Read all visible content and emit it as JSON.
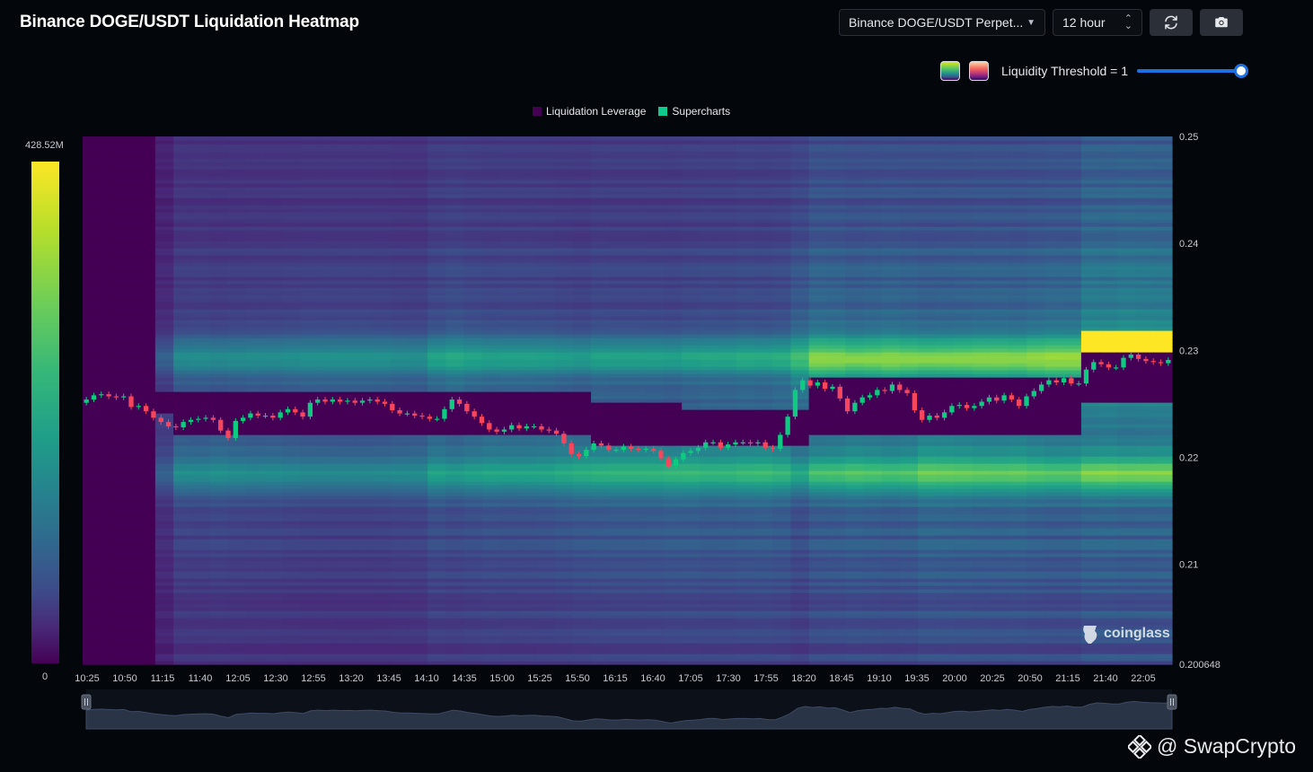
{
  "header": {
    "title": "Binance DOGE/USDT Liquidation Heatmap",
    "symbol_select": "Binance DOGE/USDT Perpet...",
    "interval_select": "12 hour",
    "threshold_label": "Liquidity Threshold = 1"
  },
  "colorbar": {
    "max_label": "428.52M",
    "min_label": "0"
  },
  "watermark": "coinglass",
  "brand": "@ SwapCrypto",
  "colors": {
    "background": "#03060a",
    "up_candle": "#0ecb81",
    "down_candle": "#f6465d",
    "slider_accent": "#1f6fe0",
    "legend_liquidation_leverage": "#440154",
    "legend_supercharts": "#10c98c"
  },
  "icons": {
    "refresh": "refresh-icon",
    "camera": "camera-icon",
    "dropdown": "chevron-down-icon"
  },
  "slider": {
    "value": 1
  },
  "chart_data": {
    "type": "heatmap",
    "title": "",
    "legend": [
      {
        "name": "Liquidation Leverage",
        "color": "#440154"
      },
      {
        "name": "Supercharts",
        "color": "#10c98c"
      }
    ],
    "x_ticks": [
      "10:25",
      "10:50",
      "11:15",
      "11:40",
      "12:05",
      "12:30",
      "12:55",
      "13:20",
      "13:45",
      "14:10",
      "14:35",
      "15:00",
      "15:25",
      "15:50",
      "16:15",
      "16:40",
      "17:05",
      "17:30",
      "17:55",
      "18:20",
      "18:45",
      "19:10",
      "19:35",
      "20:00",
      "20:25",
      "20:50",
      "21:15",
      "21:40",
      "22:05"
    ],
    "y_ticks": [
      "0.25",
      "0.24",
      "0.23",
      "0.22",
      "0.21",
      "0.200648"
    ],
    "y_range": [
      0.200648,
      0.25
    ],
    "colorbar_range": [
      0,
      428520000
    ],
    "close_prices": [
      0.2254,
      0.2258,
      0.2259,
      0.2257,
      0.2256,
      0.2257,
      0.2247,
      0.2248,
      0.2243,
      0.2237,
      0.2233,
      0.2229,
      0.2228,
      0.2233,
      0.2235,
      0.2236,
      0.2237,
      0.2235,
      0.2225,
      0.2218,
      0.2234,
      0.2237,
      0.2241,
      0.2239,
      0.2239,
      0.2237,
      0.2242,
      0.2245,
      0.2242,
      0.2238,
      0.2251,
      0.2254,
      0.2252,
      0.2254,
      0.2252,
      0.2253,
      0.2251,
      0.2253,
      0.2254,
      0.2252,
      0.225,
      0.2244,
      0.2241,
      0.2241,
      0.2239,
      0.2238,
      0.2236,
      0.2236,
      0.2245,
      0.2254,
      0.225,
      0.2243,
      0.2238,
      0.2232,
      0.2226,
      0.2224,
      0.2226,
      0.223,
      0.2227,
      0.2229,
      0.2229,
      0.2226,
      0.2225,
      0.2222,
      0.2213,
      0.2203,
      0.2201,
      0.2207,
      0.2213,
      0.2211,
      0.2207,
      0.2207,
      0.221,
      0.2208,
      0.2207,
      0.2208,
      0.2206,
      0.2199,
      0.2192,
      0.2198,
      0.2204,
      0.2206,
      0.2209,
      0.2214,
      0.2214,
      0.2209,
      0.2212,
      0.2214,
      0.2214,
      0.2213,
      0.2214,
      0.2209,
      0.2208,
      0.2221,
      0.2238,
      0.2263,
      0.2272,
      0.2267,
      0.227,
      0.2264,
      0.2266,
      0.2255,
      0.2243,
      0.2251,
      0.2256,
      0.2258,
      0.2263,
      0.2262,
      0.2268,
      0.2263,
      0.226,
      0.2244,
      0.2235,
      0.2239,
      0.2237,
      0.2242,
      0.2248,
      0.2249,
      0.2246,
      0.2248,
      0.2252,
      0.2256,
      0.2253,
      0.2258,
      0.2254,
      0.2248,
      0.2257,
      0.2262,
      0.2268,
      0.2272,
      0.227,
      0.2274,
      0.2269,
      0.2269,
      0.2282,
      0.2289,
      0.2287,
      0.2284,
      0.2284,
      0.2293,
      0.2296,
      0.2292,
      0.229,
      0.2289,
      0.2288,
      0.2291
    ]
  }
}
